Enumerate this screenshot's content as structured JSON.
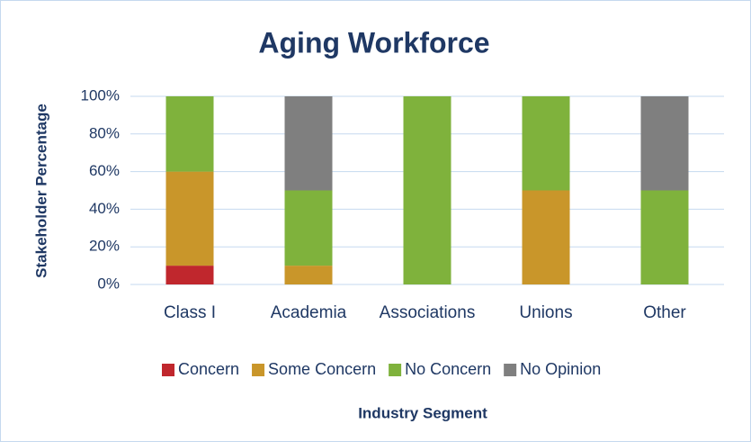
{
  "chart_data": {
    "type": "bar",
    "stacked": true,
    "title": "Aging Workforce",
    "x_label": "Industry Segment",
    "y_label": "Stakeholder Percentage",
    "categories": [
      "Class I",
      "Academia",
      "Associations",
      "Unions",
      "Other"
    ],
    "series": [
      {
        "name": "Concern",
        "color": "#c0272d",
        "values": [
          10,
          0,
          0,
          0,
          0
        ]
      },
      {
        "name": "Some Concern",
        "color": "#c9962a",
        "values": [
          50,
          10,
          0,
          50,
          0
        ]
      },
      {
        "name": "No Concern",
        "color": "#7fb23c",
        "values": [
          40,
          40,
          100,
          50,
          50
        ]
      },
      {
        "name": "No Opinion",
        "color": "#7f7f7f",
        "values": [
          0,
          50,
          0,
          0,
          50
        ]
      }
    ],
    "ylim": [
      0,
      100
    ],
    "yticks": [
      {
        "value": 0,
        "label": "0%"
      },
      {
        "value": 20,
        "label": "20%"
      },
      {
        "value": 40,
        "label": "40%"
      },
      {
        "value": 60,
        "label": "60%"
      },
      {
        "value": 80,
        "label": "80%"
      },
      {
        "value": 100,
        "label": "100%"
      }
    ],
    "grid": true,
    "legend": "bottom"
  }
}
